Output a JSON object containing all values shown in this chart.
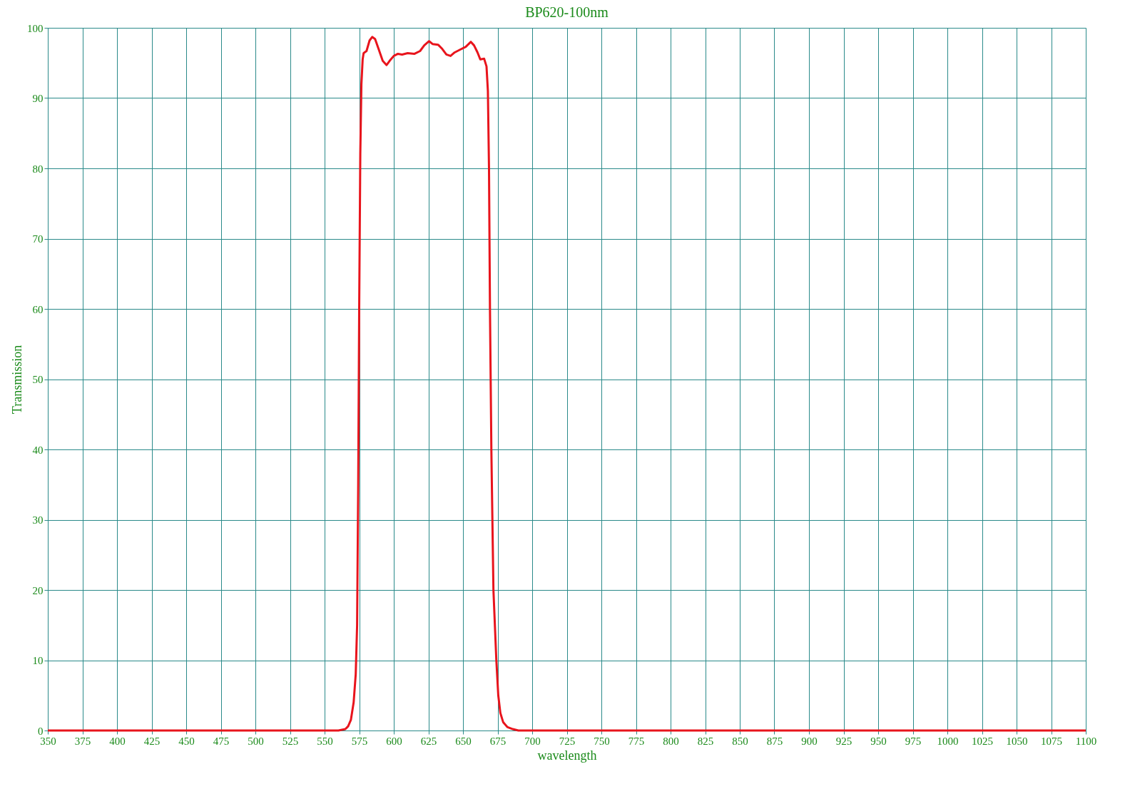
{
  "chart_data": {
    "type": "line",
    "title": "BP620-100nm",
    "xlabel": "wavelength",
    "ylabel": "Transmission",
    "series": [
      {
        "color": "#e8141c",
        "x": [
          350,
          560,
          565,
          567,
          569,
          571,
          572.5,
          573.5,
          574.3,
          575,
          575.8,
          576.6,
          577.5,
          578.2,
          580.3,
          582.5,
          584.4,
          586.5,
          589,
          592,
          594.8,
          597,
          600,
          603,
          606,
          610,
          615,
          619,
          622,
          625.5,
          628,
          632,
          635,
          638,
          641,
          644,
          648,
          652,
          655.7,
          658,
          660.5,
          662.5,
          665.3,
          667,
          668,
          668.8,
          669.5,
          670.5,
          672,
          674.1,
          675.5,
          677,
          679,
          682,
          686,
          690,
          1100
        ],
        "values": [
          0,
          0,
          0.2,
          0.6,
          1.5,
          4,
          8,
          15,
          35,
          60,
          82,
          92,
          95.5,
          96.4,
          96.7,
          98.2,
          98.7,
          98.4,
          97,
          95.3,
          94.7,
          95.3,
          96.0,
          96.3,
          96.2,
          96.4,
          96.3,
          96.7,
          97.5,
          98.1,
          97.7,
          97.6,
          97.0,
          96.2,
          96.0,
          96.5,
          96.9,
          97.3,
          98.0,
          97.5,
          96.5,
          95.5,
          95.6,
          94.5,
          91,
          80,
          60,
          40,
          20,
          10,
          5,
          2.5,
          1.2,
          0.5,
          0.2,
          0,
          0
        ]
      }
    ],
    "xlim": [
      350,
      1100
    ],
    "xticks": [
      350,
      375,
      400,
      425,
      450,
      475,
      500,
      525,
      550,
      575,
      600,
      625,
      650,
      675,
      700,
      725,
      750,
      775,
      800,
      825,
      850,
      875,
      900,
      925,
      950,
      975,
      1000,
      1025,
      1050,
      1075,
      1100
    ],
    "ylim": [
      0,
      100
    ],
    "yticks": [
      0,
      10,
      20,
      30,
      40,
      50,
      60,
      70,
      80,
      90,
      100
    ],
    "grid": true,
    "marker": "none",
    "line_style": "solid"
  }
}
